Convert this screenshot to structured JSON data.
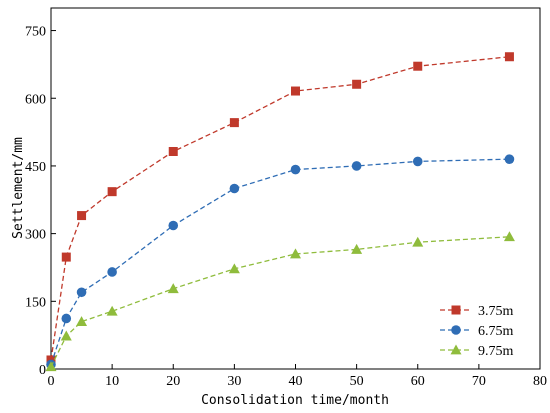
{
  "chart_data": {
    "type": "line",
    "title": "",
    "xlabel": "Consolidation time/month",
    "ylabel": "Settlement/mm",
    "xlim": [
      0,
      80
    ],
    "ylim": [
      0,
      800
    ],
    "xticks": [
      0,
      10,
      20,
      30,
      40,
      50,
      60,
      70,
      80
    ],
    "yticks": [
      0,
      150,
      300,
      450,
      600,
      750
    ],
    "grid": false,
    "legend_position": "bottom-right",
    "line_style": "dashed",
    "series": [
      {
        "name": "3.75m",
        "color": "#c0392b",
        "marker": "square",
        "x": [
          0,
          2.5,
          5,
          10,
          20,
          30,
          40,
          50,
          60,
          75
        ],
        "y": [
          20,
          248,
          340,
          393,
          482,
          546,
          616,
          631,
          671,
          692
        ]
      },
      {
        "name": "6.75m",
        "color": "#2f6db5",
        "marker": "circle",
        "x": [
          0,
          2.5,
          5,
          10,
          20,
          30,
          40,
          50,
          60,
          75
        ],
        "y": [
          10,
          112,
          170,
          215,
          318,
          400,
          442,
          450,
          460,
          465
        ]
      },
      {
        "name": "9.75m",
        "color": "#8fbc3c",
        "marker": "triangle",
        "x": [
          0,
          2.5,
          5,
          10,
          20,
          30,
          40,
          50,
          60,
          75
        ],
        "y": [
          5,
          73,
          105,
          128,
          178,
          222,
          255,
          265,
          281,
          293
        ]
      }
    ]
  }
}
